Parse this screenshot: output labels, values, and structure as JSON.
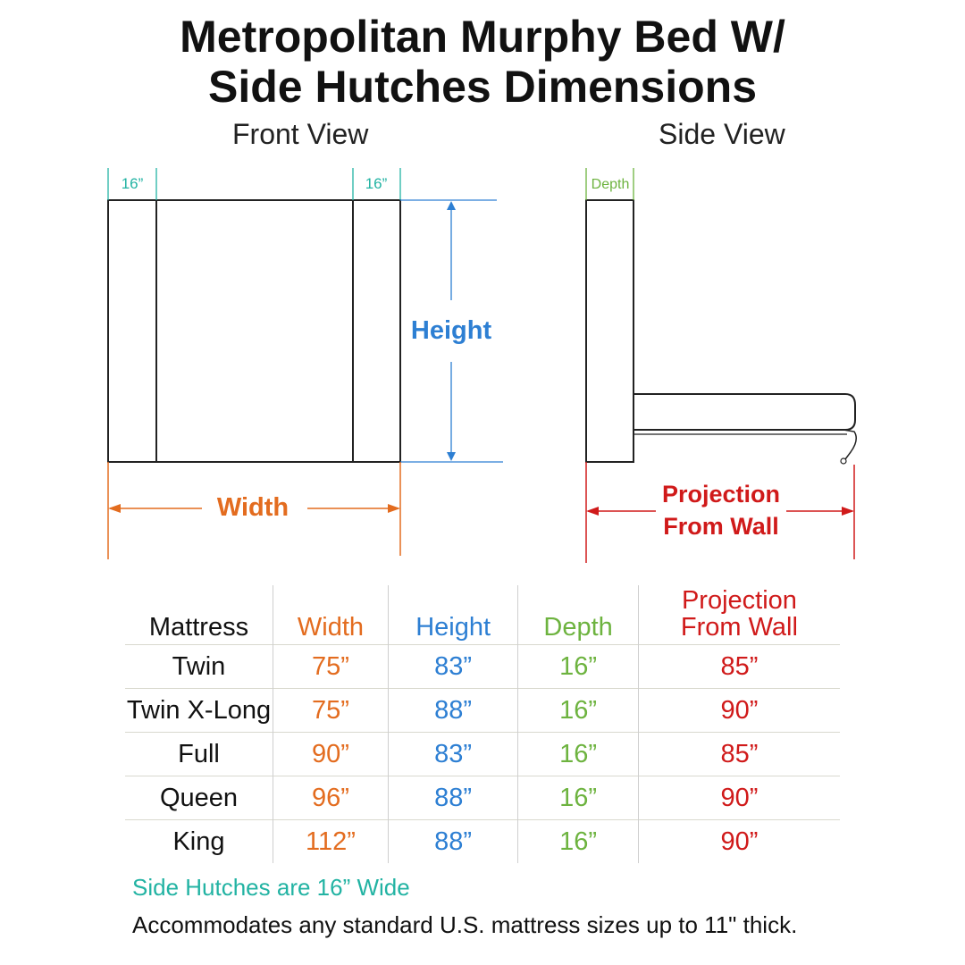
{
  "title": {
    "line1": "Metropolitan Murphy Bed W/",
    "line2": "Side Hutches Dimensions"
  },
  "views": {
    "front": "Front View",
    "side": "Side View"
  },
  "front_labels": {
    "hutch_left": "16”",
    "hutch_right": "16”",
    "height": "Height",
    "width": "Width"
  },
  "side_labels": {
    "depth": "Depth",
    "projection_line1": "Projection",
    "projection_line2": "From Wall"
  },
  "colors": {
    "hutch": "#22b3a3",
    "width": "#e36c1f",
    "height": "#2d7fd3",
    "depth": "#6db33f",
    "projection": "#d01a1a"
  },
  "table": {
    "headers": {
      "mattress": "Mattress",
      "width": "Width",
      "height": "Height",
      "depth": "Depth",
      "projection_line1": "Projection",
      "projection_line2": "From Wall"
    },
    "rows": [
      {
        "mattress": "Twin",
        "width": "75”",
        "height": "83”",
        "depth": "16”",
        "projection": "85”"
      },
      {
        "mattress": "Twin X-Long",
        "width": "75”",
        "height": "88”",
        "depth": "16”",
        "projection": "90”"
      },
      {
        "mattress": "Full",
        "width": "90”",
        "height": "83”",
        "depth": "16”",
        "projection": "85”"
      },
      {
        "mattress": "Queen",
        "width": "96”",
        "height": "88”",
        "depth": "16”",
        "projection": "90”"
      },
      {
        "mattress": "King",
        "width": "112”",
        "height": "88”",
        "depth": "16”",
        "projection": "90”"
      }
    ]
  },
  "notes": {
    "hutches": "Side Hutches are 16” Wide",
    "mattress": "Accommodates any standard U.S. mattress sizes up to 11\" thick."
  }
}
